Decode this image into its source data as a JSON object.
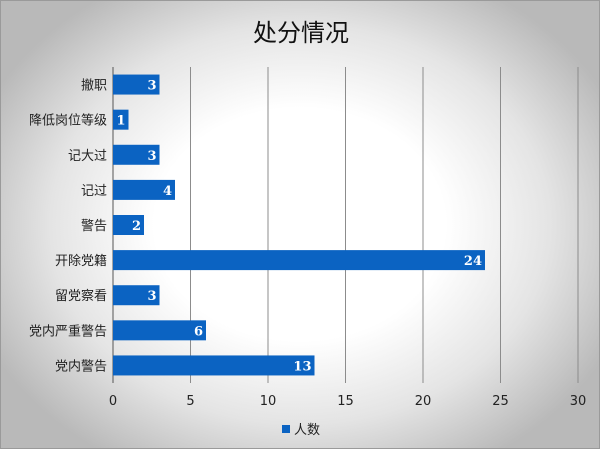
{
  "chart_data": {
    "type": "bar",
    "orientation": "horizontal",
    "title": "处分情况",
    "categories": [
      "撤职",
      "降低岗位等级",
      "记大过",
      "记过",
      "警告",
      "开除党籍",
      "留党察看",
      "党内严重警告",
      "党内警告"
    ],
    "series": [
      {
        "name": "人数",
        "values": [
          3,
          1,
          3,
          4,
          2,
          24,
          3,
          6,
          13
        ],
        "color": "#0b63c2"
      }
    ],
    "xlim": [
      0,
      30
    ],
    "xticks": [
      0,
      5,
      10,
      15,
      20,
      25,
      30
    ],
    "grid": true,
    "data_labels": true,
    "legend_position": "bottom"
  }
}
